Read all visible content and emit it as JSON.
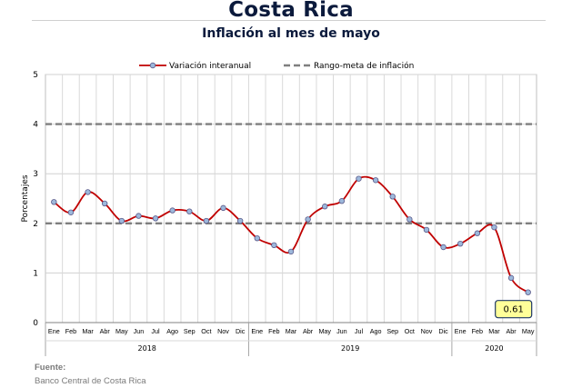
{
  "title": "Costa Rica",
  "subtitle": "Inflación al mes de mayo",
  "source": {
    "heading": "Fuente:",
    "text": "Banco Central de Costa Rica"
  },
  "chart_data": {
    "type": "line",
    "ylabel": "Porcentajes",
    "ylim": [
      0,
      5
    ],
    "yticks": [
      "0",
      "1",
      "2",
      "3",
      "4",
      "5"
    ],
    "grid": true,
    "legend_position": "top",
    "categories": [
      "Ene",
      "Feb",
      "Mar",
      "Abr",
      "May",
      "Jun",
      "Jul",
      "Ago",
      "Sep",
      "Oct",
      "Nov",
      "Dic",
      "Ene",
      "Feb",
      "Mar",
      "Abr",
      "May",
      "Jun",
      "Jul",
      "Ago",
      "Sep",
      "Oct",
      "Nov",
      "Dic",
      "Ene",
      "Feb",
      "Mar",
      "Abr",
      "May"
    ],
    "year_groups": [
      {
        "label": "2018",
        "count": 12
      },
      {
        "label": "2019",
        "count": 12
      },
      {
        "label": "2020",
        "count": 5
      }
    ],
    "series": [
      {
        "name": "Variación interanual",
        "color": "#c00000",
        "marker_color": "#9db8db",
        "values": [
          2.43,
          2.22,
          2.63,
          2.4,
          2.05,
          2.15,
          2.1,
          2.26,
          2.24,
          2.05,
          2.31,
          2.05,
          1.7,
          1.56,
          1.43,
          2.08,
          2.34,
          2.45,
          2.9,
          2.87,
          2.54,
          2.08,
          1.87,
          1.52,
          1.59,
          1.8,
          1.92,
          0.9,
          0.61
        ]
      },
      {
        "name": "Rango-meta de inflación",
        "color": "#7f7f7f",
        "style": "dashed",
        "values_lower": 2,
        "values_upper": 4
      }
    ],
    "annotation": {
      "text": "0.61",
      "point_index": 28
    }
  }
}
